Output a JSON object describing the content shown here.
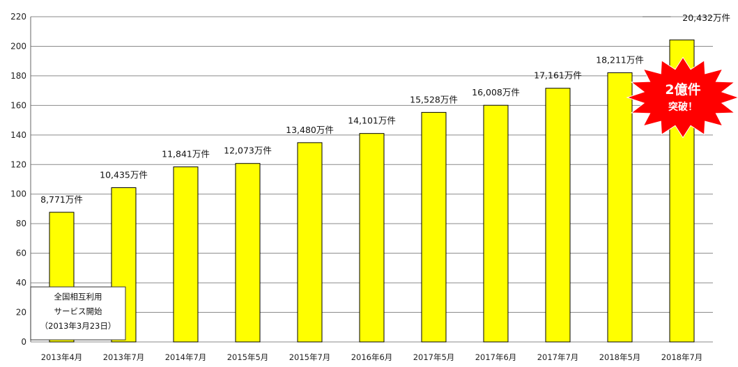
{
  "chart_data": {
    "type": "bar",
    "title": "",
    "xlabel": "",
    "ylabel": "",
    "ylim": [
      0,
      220
    ],
    "y_ticks": [
      0,
      20,
      40,
      60,
      80,
      100,
      120,
      140,
      160,
      180,
      200,
      220
    ],
    "grid": "horizontal",
    "bar_color": "#ffff00",
    "categories": [
      "2013年4月",
      "2013年7月",
      "2014年7月",
      "2015年5月",
      "2015年7月",
      "2016年6月",
      "2017年5月",
      "2017年6月",
      "2017年7月",
      "2018年5月",
      "2018年7月"
    ],
    "values": [
      87.71,
      104.35,
      118.41,
      120.73,
      134.8,
      141.01,
      155.28,
      160.08,
      171.61,
      182.11,
      204.32
    ],
    "data_labels": [
      "8,771万件",
      "10,435万件",
      "11,841万件",
      "12,073万件",
      "13,480万件",
      "14,101万件",
      "15,528万件",
      "16,008万件",
      "17,161万件",
      "18,211万件",
      "20,432万件"
    ],
    "annotations": {
      "note_lines": [
        "全国相互利用",
        "サービス開始",
        "（2013年3月23日）"
      ],
      "starburst_lines": [
        "2億件",
        "突破！"
      ],
      "starburst_color": "#ff0000"
    }
  }
}
